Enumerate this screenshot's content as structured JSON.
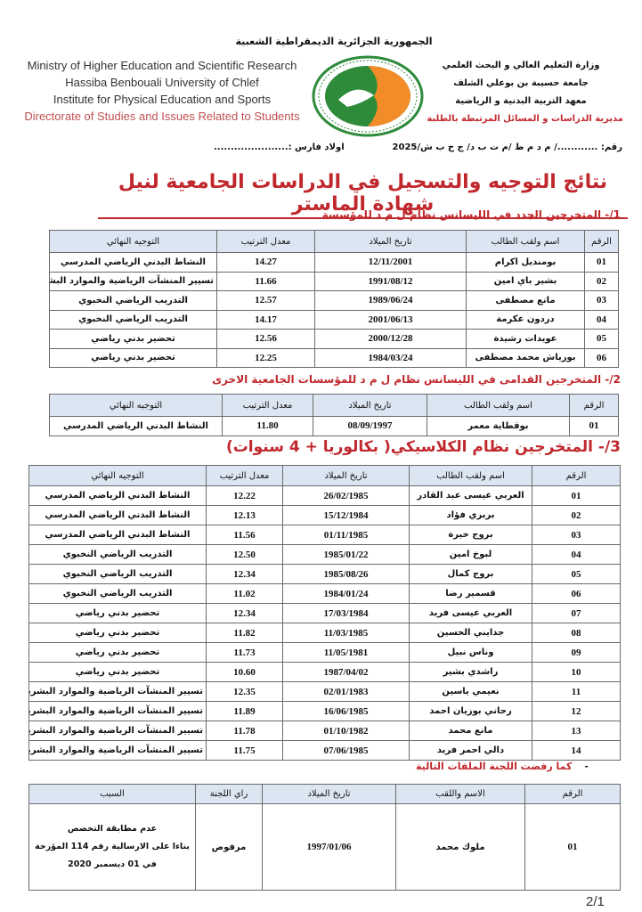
{
  "header": {
    "republic": "الجمهورية الجزائرية الديمقراطية الشعبية",
    "en_lines": [
      "Ministry of Higher Education and Scientific Research",
      "Hassiba Benbouali University of Chlef",
      "Institute for Physical Education and Sports",
      "Directorate of Studies and Issues Related to Students"
    ],
    "ar_lines": [
      "وزارة التعليم العالي و البحث العلمي",
      "جامعة حسيبة بن بوعلي الشلف",
      "معهد التربية البدنية و الرياضية",
      "مديرية الدراسات و المسائل المرتبطة بالطلبة"
    ],
    "logo_text": "HASSIBA BENBOUALI UNIVERSITY OF CHLEF",
    "colors": {
      "logo_green": "#2e8b3a",
      "logo_orange": "#f28c28",
      "accent_red": "#c0282d",
      "header_blue": "#dce6f2"
    }
  },
  "reference": {
    "number": "رقم: ............/ م د م ط /م ت ب د/ ج ح ب ش/2025",
    "place": "اولاد فارس :......................"
  },
  "title": "نتائج التوجيه والتسجيل في الدراسات الجامعية لنيل شهادة الماستر",
  "section1": {
    "heading": "1/- المتخرجين الجدد في الليسانس نظام ل م د للمؤسسة",
    "columns": [
      "الرقم",
      "اسم ولقب الطالب",
      "تاريخ الميلاد",
      "معدل الترتيب",
      "التوجيه النهائي"
    ],
    "rows": [
      [
        "01",
        "بومنديل اكرام",
        "12/11/2001",
        "14.27",
        "النشاط البدني الرياضي المدرسي"
      ],
      [
        "02",
        "بشير باي امين",
        "1991/08/12",
        "11.66",
        "تسيير المنشآت الرياضية والموارد البشرية"
      ],
      [
        "03",
        "مانع مصطفى",
        "1989/06/24",
        "12.57",
        "التدريب الرياضي النخبوي"
      ],
      [
        "04",
        "دردون عكرمة",
        "2001/06/13",
        "14.17",
        "التدريب الرياضي النخبوي"
      ],
      [
        "05",
        "عويدات رشيدة",
        "2000/12/28",
        "12.56",
        "تحضير بدني رياضي"
      ],
      [
        "06",
        "بورياش محمد مصطفى",
        "1984/03/24",
        "12.25",
        "تحضير بدني رياضي"
      ]
    ]
  },
  "section2": {
    "heading": "2/- المتخرجين القدامى في الليسانس نظام ل م د للمؤسسات الجامعية الاخرى",
    "columns": [
      "الرقم",
      "اسم ولقب الطالب",
      "تاريخ الميلاد",
      "معدل الترتيب",
      "التوجيه النهائي"
    ],
    "rows": [
      [
        "01",
        "بوقطاية معمر",
        "08/09/1997",
        "11.80",
        "النشاط البدني الرياضي المدرسي"
      ]
    ]
  },
  "section3": {
    "heading": "3/- المتخرجين نظام الكلاسيكي( بكالوريا + 4 سنوات)",
    "columns": [
      "الرقم",
      "اسم ولقب الطالب",
      "تاريخ الميلاد",
      "معدل الترتيب",
      "التوجيه النهائي"
    ],
    "rows": [
      [
        "01",
        "العربي عيسى عبد القادر",
        "26/02/1985",
        "12.22",
        "النشاط البدني الرياضي المدرسي"
      ],
      [
        "02",
        "بربري فؤاد",
        "15/12/1984",
        "12.13",
        "النشاط البدني الرياضي المدرسي"
      ],
      [
        "03",
        "بروج خيرة",
        "01/11/1985",
        "11.56",
        "النشاط البدني الرياضي المدرسي"
      ],
      [
        "04",
        "لبوخ امين",
        "1985/01/22",
        "12.50",
        "التدريب الرياضي النخبوي"
      ],
      [
        "05",
        "بروج كمال",
        "1985/08/26",
        "12.34",
        "التدريب الرياضي النخبوي"
      ],
      [
        "06",
        "قسمير رضا",
        "1984/01/24",
        "11.02",
        "التدريب الرياضي النخبوي"
      ],
      [
        "07",
        "العربي عيسى فريد",
        "17/03/1984",
        "12.34",
        "تحضير بدني رياضي"
      ],
      [
        "08",
        "جدايني الحسين",
        "11/03/1985",
        "11.82",
        "تحضير بدني رياضي"
      ],
      [
        "09",
        "وناس نبيل",
        "11/05/1981",
        "11.73",
        "تحضير بدني رياضي"
      ],
      [
        "10",
        "راشدي بشير",
        "1987/04/02",
        "10.60",
        "تحضير بدني رياضي"
      ],
      [
        "11",
        "نعيمي ياسين",
        "02/01/1983",
        "12.35",
        "تسيير المنشآت الرياضية والموارد البشرية"
      ],
      [
        "12",
        "رحاني بوزيان احمد",
        "16/06/1985",
        "11.89",
        "تسيير المنشآت الرياضية والموارد البشرية"
      ],
      [
        "13",
        "مانع محمد",
        "01/10/1982",
        "11.78",
        "تسيير المنشآت الرياضية والموارد البشرية"
      ],
      [
        "14",
        "دالي احمر فريد",
        "07/06/1985",
        "11.75",
        "تسيير المنشآت الرياضية والموارد البشرية"
      ]
    ]
  },
  "section4": {
    "heading": "كما رفضت اللجنة الملفات التالية",
    "columns": [
      "الرقم",
      "الاسم واللقب",
      "تاريخ الميلاد",
      "راي اللجنة",
      "السبب"
    ],
    "rows": [
      [
        "01",
        "ملوك محمد",
        "1997/01/06",
        "مرفوض",
        [
          "عدم مطابقة التخصص",
          "بناءا على الارسالية رقم 114 المؤرخة في 01 ديسمبر 2020"
        ]
      ]
    ]
  },
  "page_number": "2/1"
}
